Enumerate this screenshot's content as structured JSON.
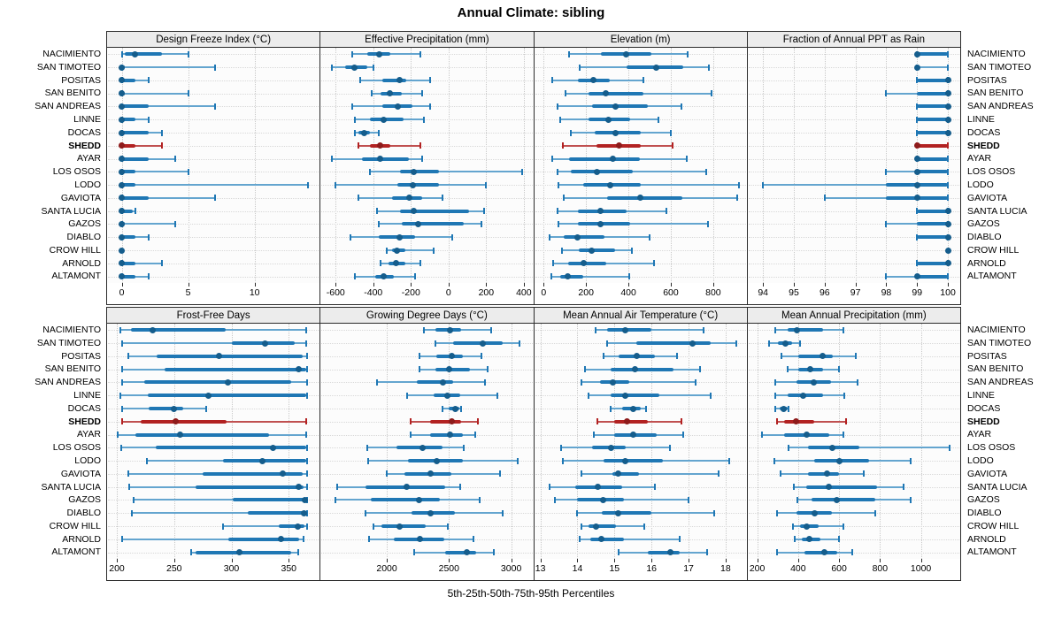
{
  "chart_data": {
    "type": "trellis-dotplot",
    "title": "Annual Climate: sibling",
    "footer_caption": "5th-25th-50th-75th-95th Percentiles",
    "percentiles": [
      5,
      25,
      50,
      75,
      95
    ],
    "legend_position": "none",
    "grid": "dotted",
    "layout": {
      "rows": 2,
      "cols": 4
    },
    "stations": [
      "NACIMIENTO",
      "SAN TIMOTEO",
      "POSITAS",
      "SAN BENITO",
      "SAN ANDREAS",
      "LINNE",
      "DOCAS",
      "SHEDD",
      "AYAR",
      "LOS OSOS",
      "LODO",
      "GAVIOTA",
      "SANTA LUCIA",
      "GAZOS",
      "DIABLO",
      "CROW HILL",
      "ARNOLD",
      "ALTAMONT"
    ],
    "highlight_station": "SHEDD",
    "colors": {
      "series": "#1f77b4",
      "series_dot": "#155d8c",
      "series_whisker": "#64a5cf",
      "highlight": "#b22222",
      "highlight_dot": "#8e1b1b",
      "highlight_whisker": "#c05050",
      "grid": "#c9c9c9",
      "panel_bg": "#fcfcfc",
      "header_bg": "#ececec",
      "border": "#2b2b2b"
    },
    "panels": [
      {
        "title": "Design Freeze Index (°C)",
        "xlim": [
          -1.1,
          14.9
        ],
        "ticks": [
          0,
          5,
          10
        ],
        "rows": [
          [
            0,
            0.2,
            1,
            3,
            5
          ],
          [
            0,
            0,
            0,
            0.2,
            7
          ],
          [
            0,
            0,
            0,
            1,
            2
          ],
          [
            0,
            0,
            0,
            0.2,
            5
          ],
          [
            0,
            0,
            0,
            2,
            7
          ],
          [
            0,
            0,
            0,
            1,
            2
          ],
          [
            0,
            0,
            0,
            2,
            3
          ],
          [
            0,
            0,
            0,
            1,
            3
          ],
          [
            0,
            0,
            0,
            2,
            4
          ],
          [
            0,
            0,
            0,
            1,
            5
          ],
          [
            0,
            0,
            0,
            1,
            14
          ],
          [
            0,
            0,
            0,
            2,
            7
          ],
          [
            0,
            0,
            0,
            0.8,
            1
          ],
          [
            0,
            0,
            0,
            0.2,
            4
          ],
          [
            0,
            0,
            0,
            1,
            2
          ],
          [
            0,
            0,
            0,
            0,
            0
          ],
          [
            0,
            0,
            0,
            1,
            3
          ],
          [
            0,
            0,
            0,
            1,
            2
          ]
        ]
      },
      {
        "title": "Effective Precipitation (mm)",
        "xlim": [
          -680,
          450
        ],
        "ticks": [
          -600,
          -400,
          -200,
          0,
          200,
          400
        ],
        "rows": [
          [
            -510,
            -430,
            -370,
            -310,
            -150
          ],
          [
            -620,
            -550,
            -500,
            -430,
            -400
          ],
          [
            -470,
            -350,
            -260,
            -225,
            -100
          ],
          [
            -410,
            -360,
            -310,
            -250,
            -140
          ],
          [
            -510,
            -350,
            -270,
            -190,
            -100
          ],
          [
            -500,
            -420,
            -345,
            -240,
            -130
          ],
          [
            -500,
            -480,
            -450,
            -420,
            -370
          ],
          [
            -480,
            -420,
            -365,
            -310,
            -150
          ],
          [
            -620,
            -460,
            -365,
            -210,
            -140
          ],
          [
            -420,
            -260,
            -185,
            -50,
            390
          ],
          [
            -600,
            -270,
            -190,
            -50,
            200
          ],
          [
            -480,
            -300,
            -210,
            -140,
            -30
          ],
          [
            -380,
            -260,
            -185,
            110,
            190
          ],
          [
            -370,
            -250,
            -160,
            80,
            175
          ],
          [
            -520,
            -370,
            -260,
            -180,
            20
          ],
          [
            -330,
            -300,
            -275,
            -230,
            -80
          ],
          [
            -360,
            -320,
            -280,
            -230,
            -150
          ],
          [
            -500,
            -390,
            -345,
            -290,
            -180
          ]
        ]
      },
      {
        "title": "Elevation (m)",
        "xlim": [
          -45,
          958
        ],
        "ticks": [
          0,
          200,
          400,
          600,
          800
        ],
        "rows": [
          [
            120,
            270,
            390,
            510,
            680
          ],
          [
            170,
            390,
            530,
            660,
            780
          ],
          [
            40,
            160,
            235,
            310,
            470
          ],
          [
            105,
            210,
            295,
            470,
            790
          ],
          [
            65,
            230,
            340,
            490,
            650
          ],
          [
            80,
            210,
            305,
            410,
            540
          ],
          [
            130,
            240,
            340,
            460,
            600
          ],
          [
            90,
            250,
            355,
            460,
            610
          ],
          [
            40,
            120,
            325,
            455,
            675
          ],
          [
            65,
            130,
            250,
            420,
            765
          ],
          [
            70,
            185,
            315,
            460,
            920
          ],
          [
            95,
            300,
            455,
            655,
            915
          ],
          [
            65,
            160,
            270,
            390,
            580
          ],
          [
            70,
            160,
            270,
            410,
            775
          ],
          [
            30,
            95,
            160,
            285,
            500
          ],
          [
            85,
            165,
            225,
            335,
            415
          ],
          [
            45,
            115,
            190,
            295,
            520
          ],
          [
            35,
            80,
            115,
            185,
            405
          ]
        ]
      },
      {
        "title": "Fraction of Annual PPT as Rain",
        "xlim": [
          93.5,
          100.4
        ],
        "ticks": [
          94,
          95,
          96,
          97,
          98,
          99,
          100
        ],
        "rows": [
          [
            99,
            99,
            99,
            100,
            100
          ],
          [
            99,
            99,
            99,
            99,
            100
          ],
          [
            99,
            99,
            100,
            100,
            100
          ],
          [
            98,
            99,
            100,
            100,
            100
          ],
          [
            99,
            99,
            100,
            100,
            100
          ],
          [
            99,
            99,
            100,
            100,
            100
          ],
          [
            99,
            99,
            100,
            100,
            100
          ],
          [
            99,
            99,
            99,
            100,
            100
          ],
          [
            99,
            99,
            99,
            100,
            100
          ],
          [
            98,
            99,
            99,
            100,
            100
          ],
          [
            94,
            98,
            99,
            100,
            100
          ],
          [
            96,
            98,
            99,
            100,
            100
          ],
          [
            99,
            99,
            100,
            100,
            100
          ],
          [
            98,
            99,
            100,
            100,
            100
          ],
          [
            99,
            99,
            100,
            100,
            100
          ],
          [
            100,
            100,
            100,
            100,
            100
          ],
          [
            99,
            99,
            100,
            100,
            100
          ],
          [
            98,
            99,
            99,
            100,
            100
          ]
        ]
      },
      {
        "title": "Frost-Free Days",
        "xlim": [
          191.5,
          377
        ],
        "ticks": [
          200,
          250,
          300,
          350
        ],
        "rows": [
          [
            203,
            212,
            231,
            295,
            365
          ],
          [
            205,
            300,
            329,
            355,
            365
          ],
          [
            210,
            235,
            289,
            362,
            366
          ],
          [
            205,
            242,
            359,
            365,
            366
          ],
          [
            205,
            224,
            297,
            352,
            366
          ],
          [
            203,
            227,
            280,
            365,
            366
          ],
          [
            205,
            228,
            250,
            258,
            278
          ],
          [
            205,
            221,
            251,
            296,
            365
          ],
          [
            201,
            216,
            255,
            333,
            365
          ],
          [
            204,
            234,
            336,
            365,
            366
          ],
          [
            226,
            293,
            327,
            365,
            366
          ],
          [
            210,
            275,
            345,
            362,
            366
          ],
          [
            211,
            269,
            359,
            363,
            366
          ],
          [
            215,
            301,
            364,
            365,
            366
          ],
          [
            213,
            314,
            363,
            365,
            366
          ],
          [
            293,
            341,
            358,
            364,
            366
          ],
          [
            205,
            297,
            343,
            359,
            363
          ],
          [
            265,
            269,
            307,
            352,
            358
          ]
        ]
      },
      {
        "title": "Growing Degree Days (°C)",
        "xlim": [
          1468,
          3177
        ],
        "ticks": [
          2000,
          2500,
          3000
        ],
        "rows": [
          [
            2300,
            2390,
            2510,
            2600,
            2840
          ],
          [
            2390,
            2530,
            2770,
            2930,
            3070
          ],
          [
            2260,
            2400,
            2520,
            2610,
            2760
          ],
          [
            2260,
            2390,
            2500,
            2670,
            2810
          ],
          [
            1920,
            2240,
            2450,
            2530,
            2790
          ],
          [
            2160,
            2380,
            2490,
            2590,
            2890
          ],
          [
            2450,
            2500,
            2550,
            2580,
            2595
          ],
          [
            2190,
            2350,
            2520,
            2600,
            2730
          ],
          [
            2190,
            2350,
            2510,
            2610,
            2710
          ],
          [
            1840,
            2080,
            2290,
            2450,
            2620
          ],
          [
            1850,
            2170,
            2400,
            2610,
            3050
          ],
          [
            2000,
            2140,
            2350,
            2520,
            2910
          ],
          [
            1600,
            1830,
            2160,
            2470,
            2590
          ],
          [
            1590,
            1870,
            2260,
            2430,
            2750
          ],
          [
            1830,
            2200,
            2350,
            2550,
            2930
          ],
          [
            1890,
            1960,
            2100,
            2310,
            2490
          ],
          [
            1860,
            2060,
            2270,
            2460,
            2700
          ],
          [
            2220,
            2470,
            2640,
            2720,
            2860
          ]
        ]
      },
      {
        "title": "Mean Annual Air Temperature (°C)",
        "xlim": [
          12.83,
          18.57
        ],
        "ticks": [
          13,
          14,
          15,
          16,
          17,
          18
        ],
        "rows": [
          [
            14.5,
            14.8,
            15.3,
            16.0,
            17.4
          ],
          [
            14.8,
            15.6,
            17.1,
            17.6,
            18.3
          ],
          [
            14.7,
            15.1,
            15.6,
            16.1,
            16.7
          ],
          [
            14.2,
            14.9,
            15.55,
            16.6,
            17.3
          ],
          [
            14.1,
            14.6,
            14.95,
            15.4,
            17.2
          ],
          [
            14.3,
            14.9,
            15.3,
            16.2,
            17.6
          ],
          [
            14.9,
            15.2,
            15.5,
            15.7,
            15.85
          ],
          [
            14.55,
            15.0,
            15.35,
            15.9,
            16.8
          ],
          [
            14.45,
            15.0,
            15.5,
            16.15,
            16.85
          ],
          [
            13.55,
            14.4,
            14.9,
            15.3,
            16.5
          ],
          [
            13.6,
            14.7,
            15.3,
            16.3,
            18.1
          ],
          [
            14.1,
            14.95,
            15.1,
            15.65,
            17.8
          ],
          [
            13.25,
            13.95,
            14.55,
            15.2,
            16.1
          ],
          [
            13.4,
            14.0,
            14.7,
            15.25,
            17.0
          ],
          [
            14.0,
            14.65,
            15.1,
            16.0,
            17.7
          ],
          [
            14.1,
            14.3,
            14.5,
            15.05,
            15.8
          ],
          [
            14.05,
            14.35,
            14.65,
            15.25,
            16.75
          ],
          [
            15.1,
            15.9,
            16.5,
            16.75,
            17.5
          ]
        ]
      },
      {
        "title": "Mean Annual Precipitation (mm)",
        "xlim": [
          153,
          1192
        ],
        "ticks": [
          200,
          400,
          600,
          800,
          1000
        ],
        "rows": [
          [
            290,
            350,
            395,
            520,
            620
          ],
          [
            260,
            300,
            340,
            370,
            410
          ],
          [
            320,
            400,
            520,
            570,
            680
          ],
          [
            350,
            400,
            460,
            520,
            600
          ],
          [
            290,
            390,
            475,
            560,
            690
          ],
          [
            290,
            350,
            425,
            520,
            625
          ],
          [
            290,
            310,
            330,
            350,
            355
          ],
          [
            295,
            330,
            390,
            480,
            635
          ],
          [
            225,
            330,
            440,
            550,
            620
          ],
          [
            355,
            450,
            565,
            700,
            1140
          ],
          [
            285,
            480,
            600,
            745,
            950
          ],
          [
            315,
            450,
            540,
            600,
            720
          ],
          [
            380,
            440,
            550,
            785,
            915
          ],
          [
            395,
            465,
            590,
            775,
            950
          ],
          [
            295,
            390,
            480,
            565,
            775
          ],
          [
            375,
            410,
            440,
            500,
            620
          ],
          [
            385,
            420,
            455,
            510,
            600
          ],
          [
            295,
            430,
            530,
            590,
            665
          ]
        ]
      }
    ]
  }
}
